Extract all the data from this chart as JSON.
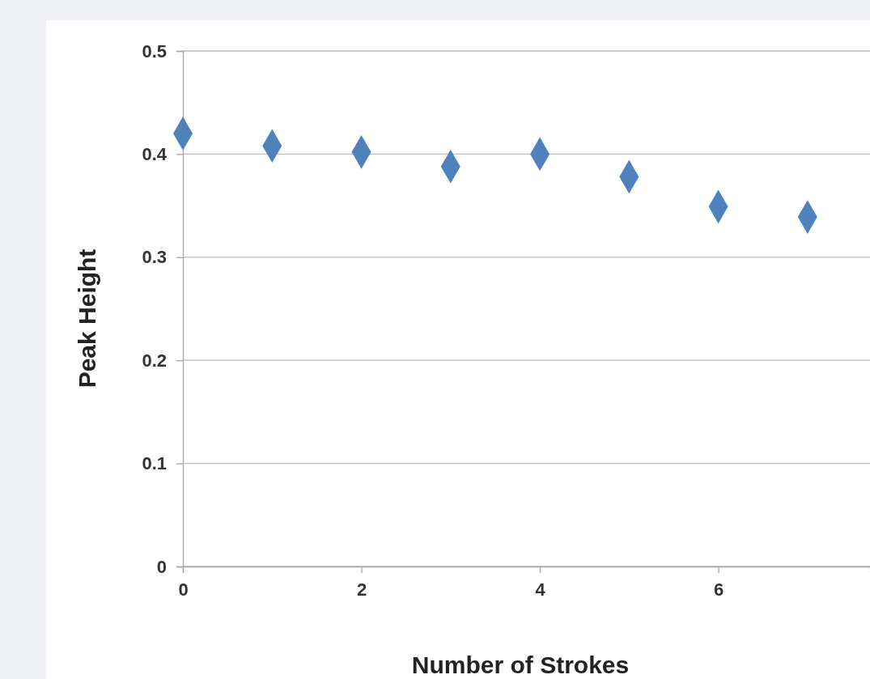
{
  "chart_data": {
    "type": "scatter",
    "xlabel": "Number of Strokes",
    "ylabel": "Peak Height",
    "x": [
      0,
      1,
      2,
      3,
      4,
      5,
      6,
      7
    ],
    "series": [
      {
        "color": "#4f81bd",
        "values": [
          0.42,
          0.408,
          0.402,
          0.388,
          0.4,
          0.378,
          0.349,
          0.339
        ]
      }
    ],
    "xlim": [
      0,
      7.7
    ],
    "xticks": [
      0,
      2,
      4,
      6
    ],
    "ylim": [
      0,
      0.5
    ],
    "yticks": [
      0,
      0.1,
      0.2,
      0.3,
      0.4,
      0.5
    ],
    "grid": "y",
    "marker": "diamond"
  }
}
